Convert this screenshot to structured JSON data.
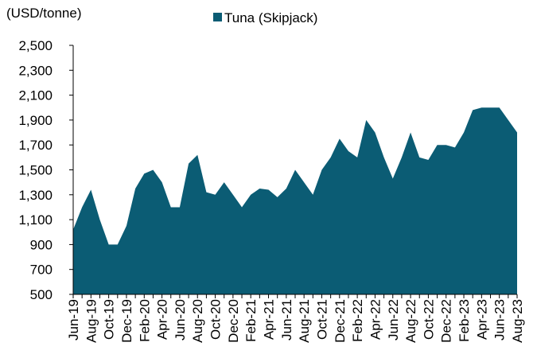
{
  "chart_data": {
    "type": "area",
    "y_label": "(USD/tonne)",
    "categories": [
      "Jun-19",
      null,
      "Aug-19",
      null,
      "Oct-19",
      null,
      "Dec-19",
      null,
      "Feb-20",
      null,
      "Apr-20",
      null,
      "Jun-20",
      null,
      "Aug-20",
      null,
      "Oct-20",
      null,
      "Dec-20",
      null,
      "Feb-21",
      null,
      "Apr-21",
      null,
      "Jun-21",
      null,
      "Aug-21",
      null,
      "Oct-21",
      null,
      "Dec-21",
      null,
      "Feb-22",
      null,
      "Apr-22",
      null,
      "Jun-22",
      null,
      "Aug-22",
      null,
      "Oct-22",
      null,
      "Dec-22",
      null,
      "Feb-23",
      null,
      "Apr-23",
      null,
      "Jun-23",
      null,
      "Aug-23"
    ],
    "series": [
      {
        "name": "Tuna (Skipjack)",
        "color": "#0b5c74",
        "values": [
          1020,
          1200,
          1340,
          1100,
          900,
          900,
          1050,
          1350,
          1470,
          1500,
          1400,
          1200,
          1200,
          1550,
          1620,
          1320,
          1300,
          1400,
          1300,
          1200,
          1300,
          1350,
          1340,
          1280,
          1350,
          1500,
          1400,
          1300,
          1500,
          1600,
          1750,
          1650,
          1600,
          1900,
          1800,
          1600,
          1430,
          1600,
          1800,
          1600,
          1580,
          1700,
          1700,
          1680,
          1800,
          1980,
          2000,
          2000,
          2000,
          1900,
          1800
        ]
      }
    ],
    "ylim": [
      500,
      2500
    ],
    "yticks": [
      500,
      700,
      900,
      {
        "value": 1100,
        "label": "1,100"
      },
      {
        "value": 1300,
        "label": "1,300"
      },
      {
        "value": 1500,
        "label": "1,500"
      },
      {
        "value": 1700,
        "label": "1,700"
      },
      {
        "value": 1900,
        "label": "1,900"
      },
      {
        "value": 2100,
        "label": "2,100"
      },
      {
        "value": 2300,
        "label": "2,300"
      },
      {
        "value": 2500,
        "label": "2,500"
      }
    ],
    "legend": "top"
  }
}
